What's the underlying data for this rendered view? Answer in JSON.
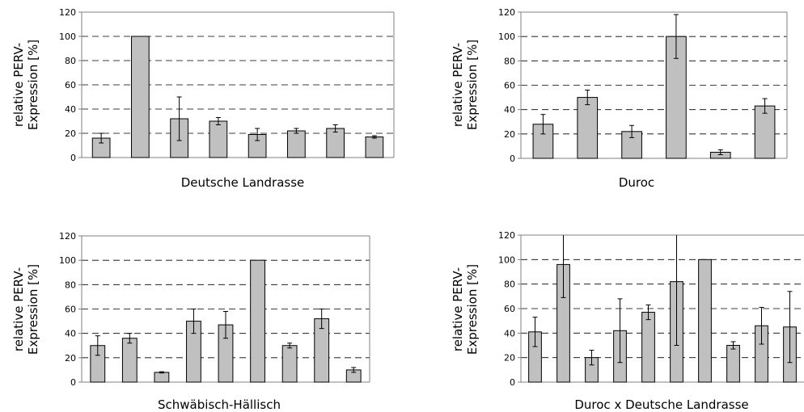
{
  "chart_data": [
    {
      "type": "bar",
      "xlabel": "Deutsche Landrasse",
      "ylabel": [
        "relative PERV-",
        "Expression [%]"
      ],
      "ylim": [
        0,
        120
      ],
      "yticks": [
        0,
        20,
        40,
        60,
        80,
        100,
        120
      ],
      "grid": "dashed horizontal",
      "values": [
        16,
        100,
        32,
        30,
        19,
        22,
        24,
        17
      ],
      "errors": [
        4,
        0,
        18,
        3,
        5,
        2,
        3,
        1
      ],
      "bar_color": "#c0c0c0"
    },
    {
      "type": "bar",
      "xlabel": "Duroc",
      "ylabel": [
        "relative PERV-",
        "Expression [%]"
      ],
      "ylim": [
        0,
        120
      ],
      "yticks": [
        0,
        20,
        40,
        60,
        80,
        100,
        120
      ],
      "grid": "dashed horizontal",
      "values": [
        28,
        50,
        22,
        100,
        5,
        43
      ],
      "errors": [
        8,
        6,
        5,
        18,
        2,
        6
      ],
      "bar_color": "#c0c0c0"
    },
    {
      "type": "bar",
      "xlabel": "Schwäbisch-Hällisch",
      "ylabel": [
        "relative PERV-",
        "Expression [%]"
      ],
      "ylim": [
        0,
        120
      ],
      "yticks": [
        0,
        20,
        40,
        60,
        80,
        100,
        120
      ],
      "grid": "dashed horizontal",
      "values": [
        30,
        36,
        8,
        50,
        47,
        100,
        30,
        52,
        10
      ],
      "errors": [
        8,
        4,
        0.5,
        10,
        11,
        0,
        2,
        8,
        2
      ],
      "bar_color": "#c0c0c0"
    },
    {
      "type": "bar",
      "xlabel": "Duroc x Deutsche Landrasse",
      "ylabel": [
        "relative PERV-",
        "Expression [%]"
      ],
      "ylim": [
        0,
        120
      ],
      "yticks": [
        0,
        20,
        40,
        60,
        80,
        100,
        120
      ],
      "grid": "dashed horizontal",
      "values": [
        41,
        96,
        20,
        42,
        57,
        82,
        100,
        30,
        46,
        45
      ],
      "errors": [
        12,
        27,
        6,
        26,
        6,
        52,
        0,
        3,
        15,
        29
      ],
      "bar_color": "#c0c0c0"
    }
  ]
}
